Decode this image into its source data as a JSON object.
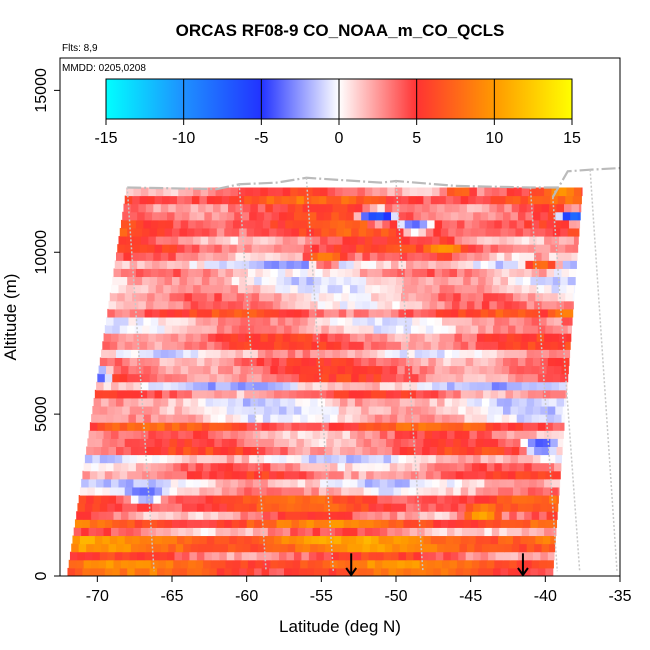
{
  "chart_data": {
    "type": "heatmap",
    "title": "ORCAS RF08-9 CO_NOAA_m_CO_QCLS",
    "flights_label": "Flts: 8,9",
    "mmdd_label": "MMDD: 0205,0208",
    "xlabel": "Latitude (deg N)",
    "ylabel": "Altitude (m)",
    "xlim": [
      -72.5,
      -35
    ],
    "ylim": [
      0,
      16000
    ],
    "x_ticks": [
      -70,
      -65,
      -60,
      -55,
      -50,
      -45,
      -40,
      -35
    ],
    "y_ticks": [
      0,
      5000,
      10000,
      15000
    ],
    "grid": false,
    "colorbar": {
      "placement": "top",
      "range": [
        -15,
        15
      ],
      "ticks": [
        -15,
        -10,
        -5,
        0,
        5,
        10,
        15
      ],
      "stops": [
        {
          "value": -15,
          "color": "#00ffff"
        },
        {
          "value": -10,
          "color": "#1e90ff"
        },
        {
          "value": -5,
          "color": "#2233ff"
        },
        {
          "value": 0,
          "color": "#ffffff"
        },
        {
          "value": 5,
          "color": "#ff3333"
        },
        {
          "value": 10,
          "color": "#ff9900"
        },
        {
          "value": 15,
          "color": "#ffff00"
        }
      ]
    },
    "domain": {
      "bottom_lat_range": [
        -72,
        -39.5
      ],
      "top_lat_range": [
        -68,
        -37.5
      ],
      "top_altitude": 12000
    },
    "profile_bands": [
      {
        "alt_range": [
          0,
          1200
        ],
        "mean_diff": 6.0
      },
      {
        "alt_range": [
          1200,
          2500
        ],
        "mean_diff": 4.5
      },
      {
        "alt_range": [
          2500,
          4000
        ],
        "mean_diff": 2.5
      },
      {
        "alt_range": [
          4000,
          5500
        ],
        "mean_diff": 3.0
      },
      {
        "alt_range": [
          5500,
          7000
        ],
        "mean_diff": 2.5
      },
      {
        "alt_range": [
          7000,
          8500
        ],
        "mean_diff": 3.0
      },
      {
        "alt_range": [
          8500,
          10000
        ],
        "mean_diff": 2.5
      },
      {
        "alt_range": [
          10000,
          12000
        ],
        "mean_diff": 3.5
      }
    ],
    "hot_spots": [
      {
        "lat": -38.5,
        "alt": 8000,
        "value": 9
      },
      {
        "lat": -40.5,
        "alt": 9500,
        "value": 8
      },
      {
        "lat": -46,
        "alt": 11950,
        "value": 12
      },
      {
        "lat": -39.2,
        "alt": 11900,
        "value": 11
      },
      {
        "lat": -47,
        "alt": 10000,
        "value": 10
      },
      {
        "lat": -44.5,
        "alt": 1800,
        "value": 11
      },
      {
        "lat": -55,
        "alt": 9700,
        "value": 9
      }
    ],
    "cold_spots": [
      {
        "lat": -51.5,
        "alt": 11000,
        "value": -7
      },
      {
        "lat": -38.2,
        "alt": 11000,
        "value": -8
      },
      {
        "lat": -70.5,
        "alt": 6100,
        "value": -6
      },
      {
        "lat": -40.5,
        "alt": 3900,
        "value": -5
      },
      {
        "lat": -67,
        "alt": 2400,
        "value": -4
      },
      {
        "lat": -49,
        "alt": 10700,
        "value": -4
      }
    ],
    "flight_track": [
      {
        "lat": -68,
        "alt": 12000
      },
      {
        "lat": -62,
        "alt": 11950
      },
      {
        "lat": -60.5,
        "alt": 12100
      },
      {
        "lat": -58,
        "alt": 12150
      },
      {
        "lat": -56,
        "alt": 12300
      },
      {
        "lat": -51,
        "alt": 12150
      },
      {
        "lat": -50,
        "alt": 12200
      },
      {
        "lat": -46,
        "alt": 12050
      },
      {
        "lat": -41,
        "alt": 12000
      },
      {
        "lat": -39.2,
        "alt": 12000
      },
      {
        "lat": -39.5,
        "alt": 11700
      },
      {
        "lat": -38.5,
        "alt": 12500
      },
      {
        "lat": -37,
        "alt": 12550
      },
      {
        "lat": -35,
        "alt": 12600
      }
    ],
    "markers": [
      {
        "lat": -53,
        "alt": 700,
        "symbol": "down-arrow"
      },
      {
        "lat": -41.5,
        "alt": 700,
        "symbol": "down-arrow"
      }
    ]
  }
}
